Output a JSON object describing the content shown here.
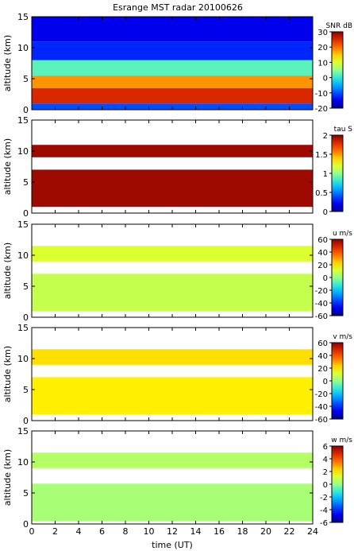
{
  "chart_data": {
    "type": "heatmap",
    "title": "Esrange MST radar 20100626",
    "xlabel": "time (UT)",
    "xlim": [
      0,
      24
    ],
    "xticks": [
      "0",
      "2",
      "4",
      "6",
      "8",
      "10",
      "12",
      "14",
      "16",
      "18",
      "20",
      "22",
      "24"
    ],
    "panels": [
      {
        "name": "snr",
        "ylabel": "altitude (km)",
        "ylim": [
          0,
          15
        ],
        "yticks": [
          "0",
          "5",
          "10",
          "15"
        ],
        "colorbar_label": "SNR dB",
        "colorbar_range": [
          -20,
          30
        ],
        "colorbar_ticks": [
          "30",
          "20",
          "10",
          "0",
          "-10",
          "-20"
        ],
        "description_field": "snr_db",
        "layers": [
          {
            "alt_range": [
              0.0,
              1.0
            ],
            "value": -10
          },
          {
            "alt_range": [
              1.0,
              3.5
            ],
            "value": 25
          },
          {
            "alt_range": [
              3.5,
              5.5
            ],
            "value": 18
          },
          {
            "alt_range": [
              5.5,
              8.0
            ],
            "value": 2
          },
          {
            "alt_range": [
              8.0,
              11.0
            ],
            "value": -12
          },
          {
            "alt_range": [
              11.0,
              15.0
            ],
            "value": -15
          }
        ]
      },
      {
        "name": "tau",
        "ylabel": "altitude (km)",
        "ylim": [
          0,
          15
        ],
        "yticks": [
          "0",
          "5",
          "10",
          "15"
        ],
        "colorbar_label": "tau S",
        "colorbar_range": [
          0,
          2
        ],
        "colorbar_ticks": [
          "2",
          "1.5",
          "1",
          "0.5",
          "0"
        ],
        "layers": [
          {
            "alt_range": [
              1.0,
              7.0
            ],
            "value": 1.95
          },
          {
            "alt_range": [
              9.0,
              11.0
            ],
            "value": 1.95
          }
        ]
      },
      {
        "name": "u",
        "ylabel": "altitude (km)",
        "ylim": [
          0,
          15
        ],
        "yticks": [
          "0",
          "5",
          "10",
          "15"
        ],
        "colorbar_label": "u m/s",
        "colorbar_range": [
          -60,
          60
        ],
        "colorbar_ticks": [
          "60",
          "40",
          "20",
          "0",
          "-20",
          "-40",
          "-60"
        ],
        "layers": [
          {
            "alt_range": [
              1.0,
              7.0
            ],
            "value": 8
          },
          {
            "alt_range": [
              9.0,
              11.5
            ],
            "value": 12
          }
        ]
      },
      {
        "name": "v",
        "ylabel": "altitude (km)",
        "ylim": [
          0,
          15
        ],
        "yticks": [
          "0",
          "5",
          "10",
          "15"
        ],
        "colorbar_label": "v m/s",
        "colorbar_range": [
          -60,
          60
        ],
        "colorbar_ticks": [
          "60",
          "40",
          "20",
          "0",
          "-20",
          "-40",
          "-60"
        ],
        "layers": [
          {
            "alt_range": [
              1.0,
              7.0
            ],
            "value": 20
          },
          {
            "alt_range": [
              9.0,
              11.5
            ],
            "value": 22
          }
        ]
      },
      {
        "name": "w",
        "ylabel": "altitude (km)",
        "ylim": [
          0,
          15
        ],
        "yticks": [
          "0",
          "5",
          "10",
          "15"
        ],
        "colorbar_label": "w m/s",
        "colorbar_range": [
          -6,
          6
        ],
        "colorbar_ticks": [
          "6",
          "4",
          "2",
          "0",
          "-2",
          "-4",
          "-6"
        ],
        "layers": [
          {
            "alt_range": [
              0.5,
              6.5
            ],
            "value": 0.3
          },
          {
            "alt_range": [
              9.0,
              11.5
            ],
            "value": 0.5
          }
        ]
      }
    ]
  }
}
